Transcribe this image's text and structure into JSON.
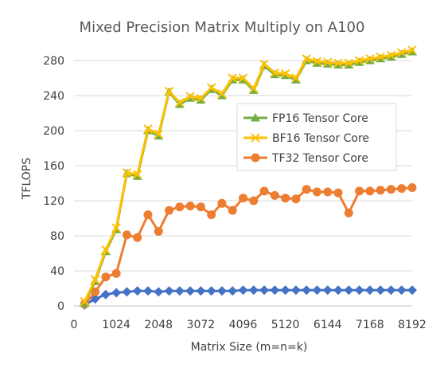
{
  "chart_data": {
    "type": "line",
    "title": "Mixed Precision Matrix Multiply on A100",
    "xlabel": "Matrix Size (m=n=k)",
    "ylabel": "TFLOPS",
    "xlim": [
      0,
      8192
    ],
    "ylim": [
      0,
      290
    ],
    "x_ticks": [
      0,
      1024,
      2048,
      3072,
      4096,
      5120,
      6144,
      7168,
      8192
    ],
    "y_ticks": [
      0,
      40,
      80,
      120,
      160,
      200,
      240,
      280
    ],
    "grid": true,
    "legend_position": "right-center",
    "x": [
      256,
      512,
      768,
      1024,
      1280,
      1536,
      1792,
      2048,
      2304,
      2560,
      2816,
      3072,
      3328,
      3584,
      3840,
      4096,
      4352,
      4608,
      4864,
      5120,
      5376,
      5632,
      5888,
      6144,
      6400,
      6656,
      6912,
      7168,
      7424,
      7680,
      7936,
      8192
    ],
    "series": [
      {
        "name": "FP16 Tensor Core",
        "color": "#70ad47",
        "marker": "triangle",
        "values": [
          3,
          28,
          62,
          87,
          151,
          148,
          200,
          194,
          244,
          230,
          237,
          235,
          247,
          240,
          258,
          258,
          246,
          274,
          264,
          263,
          258,
          280,
          277,
          276,
          275,
          275,
          278,
          280,
          282,
          284,
          287,
          290
        ]
      },
      {
        "name": "BF16 Tensor Core",
        "color": "#ffc000",
        "marker": "x",
        "values": [
          5,
          30,
          64,
          89,
          152,
          150,
          202,
          196,
          245,
          232,
          239,
          237,
          249,
          242,
          260,
          260,
          248,
          276,
          266,
          265,
          260,
          282,
          279,
          278,
          277,
          277,
          280,
          282,
          284,
          286,
          289,
          292
        ]
      },
      {
        "name": "TF32 Tensor Core",
        "color": "#ed7d31",
        "marker": "circle",
        "values": [
          2,
          16,
          33,
          37,
          81,
          78,
          104,
          85,
          109,
          113,
          114,
          113,
          104,
          117,
          109,
          123,
          120,
          131,
          126,
          123,
          122,
          133,
          130,
          130,
          129,
          106,
          131,
          131,
          132,
          133,
          134,
          135
        ]
      },
      {
        "color": "#4472c4",
        "marker": "diamond",
        "values": [
          1,
          8,
          13,
          15,
          16,
          17,
          17,
          16,
          17,
          17,
          17,
          17,
          17,
          17,
          17,
          18,
          18,
          18,
          18,
          18,
          18,
          18,
          18,
          18,
          18,
          18,
          18,
          18,
          18,
          18,
          18,
          18
        ]
      }
    ]
  }
}
